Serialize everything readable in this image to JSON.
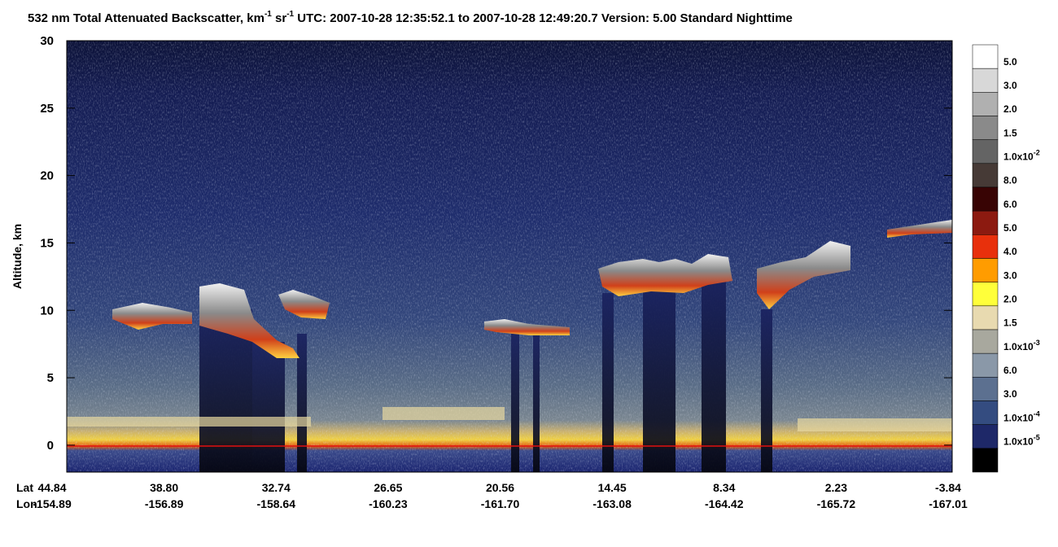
{
  "chart_data": {
    "type": "curtain",
    "title_parts": [
      {
        "text": "532 nm Total Attenuated Backscatter, km"
      },
      {
        "sup": "-1"
      },
      {
        "text": " sr"
      },
      {
        "sup": "-1"
      },
      {
        "text": "    UTC:  2007-10-28 12:35:52.1  to  2007-10-28 12:49:20.7    Version: 5.00  Standard  Nighttime"
      }
    ],
    "y_label": "Altitude, km",
    "ylim": [
      -2,
      30
    ],
    "yticks": [
      0,
      5,
      10,
      15,
      20,
      25,
      30
    ],
    "x_row_names": [
      "Lat",
      "Lon"
    ],
    "lat_labels": [
      "44.84",
      "38.80",
      "32.74",
      "26.65",
      "20.56",
      "14.45",
      "8.34",
      "2.23",
      "-3.84"
    ],
    "lon_labels": [
      "-154.89",
      "-156.89",
      "-158.64",
      "-160.23",
      "-161.70",
      "-163.08",
      "-164.42",
      "-165.72",
      "-167.01"
    ],
    "colorbar": {
      "colors": [
        "#ffffff",
        "#d8d8d8",
        "#b0b0b0",
        "#8a8a8a",
        "#646464",
        "#463a36",
        "#380404",
        "#8c1a10",
        "#e8300c",
        "#ff9c00",
        "#ffff3a",
        "#e8dab0",
        "#a8a89e",
        "#8a98a8",
        "#5c7090",
        "#344c80",
        "#1e2868",
        "#000000"
      ],
      "labels": [
        "5.0",
        "3.0",
        "2.0",
        "1.5",
        {
          "text": "1.0x10",
          "exp": "-2"
        },
        "8.0",
        "6.0",
        "5.0",
        "4.0",
        "3.0",
        "2.0",
        "1.5",
        {
          "text": "1.0x10",
          "exp": "-3"
        },
        "6.0",
        "3.0",
        {
          "text": "1.0x10",
          "exp": "-4"
        },
        {
          "text": "1.0x10",
          "exp": "-5"
        }
      ]
    }
  }
}
